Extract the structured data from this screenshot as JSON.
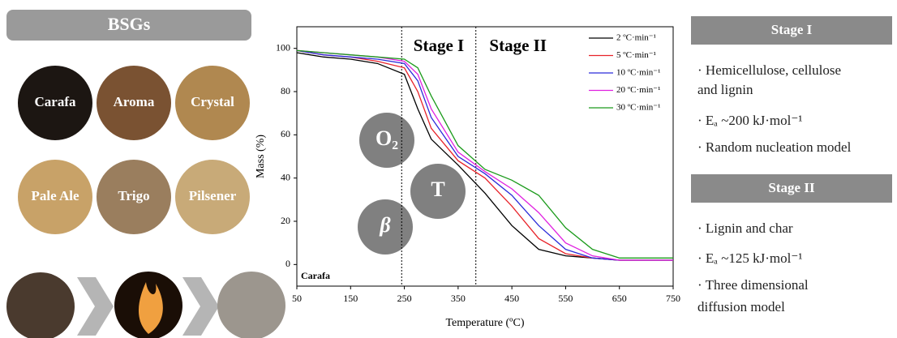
{
  "bsgs": {
    "title": "BSGs",
    "samples": [
      "Carafa",
      "Aroma",
      "Crystal",
      "Pale Ale",
      "Trigo",
      "Pilsener"
    ]
  },
  "factors": [
    "O₂",
    "T",
    "β"
  ],
  "chart_data": {
    "type": "line",
    "x_label": "Temperature (ºC)",
    "y_label": "Mass (%)",
    "x": [
      50,
      100,
      150,
      200,
      250,
      275,
      300,
      350,
      400,
      450,
      500,
      550,
      600,
      650,
      700,
      750
    ],
    "series": [
      {
        "name": "2 ºC·min⁻¹",
        "color": "#000000",
        "values": [
          98,
          96,
          95,
          93,
          88,
          72,
          58,
          46,
          33,
          18,
          7,
          4,
          3,
          2,
          2,
          2
        ]
      },
      {
        "name": "5 ºC·min⁻¹",
        "color": "#e8232a",
        "values": [
          99,
          97,
          96,
          94,
          91,
          80,
          63,
          48,
          40,
          27,
          12,
          5,
          3,
          2,
          2,
          2
        ]
      },
      {
        "name": "10 ºC·min⁻¹",
        "color": "#2b2bd9",
        "values": [
          99,
          97,
          96,
          95,
          93,
          85,
          68,
          50,
          42,
          32,
          18,
          7,
          3,
          2,
          2,
          2
        ]
      },
      {
        "name": "20 ºC·min⁻¹",
        "color": "#e020e0",
        "values": [
          99,
          98,
          97,
          96,
          94,
          88,
          72,
          52,
          43,
          35,
          24,
          10,
          4,
          2,
          2,
          2
        ]
      },
      {
        "name": "30 ºC·min⁻¹",
        "color": "#1a9a1a",
        "values": [
          99,
          98,
          97,
          96,
          95,
          91,
          78,
          55,
          44,
          39,
          32,
          17,
          7,
          3,
          3,
          3
        ]
      }
    ],
    "xlim": [
      50,
      750
    ],
    "xticks": [
      50,
      150,
      250,
      350,
      450,
      550,
      650,
      750
    ],
    "ylim": [
      -10,
      110
    ],
    "yticks": [
      0,
      20,
      40,
      60,
      80,
      100
    ],
    "stage_lines": [
      245,
      383
    ],
    "stage_labels": [
      "Stage I",
      "Stage II"
    ],
    "sample_label": "Carafa",
    "legend": "upper right"
  },
  "stages": [
    {
      "title": "Stage I",
      "items": [
        "· Hemicellulose, cellulose",
        "and lignin",
        "· Eₐ ~200 kJ·mol⁻¹",
        "· Random nucleation model"
      ]
    },
    {
      "title": "Stage II",
      "items": [
        "· Lignin and char",
        "·  Eₐ ~125 kJ·mol⁻¹",
        "· Three dimensional",
        "diffusion model"
      ]
    }
  ]
}
